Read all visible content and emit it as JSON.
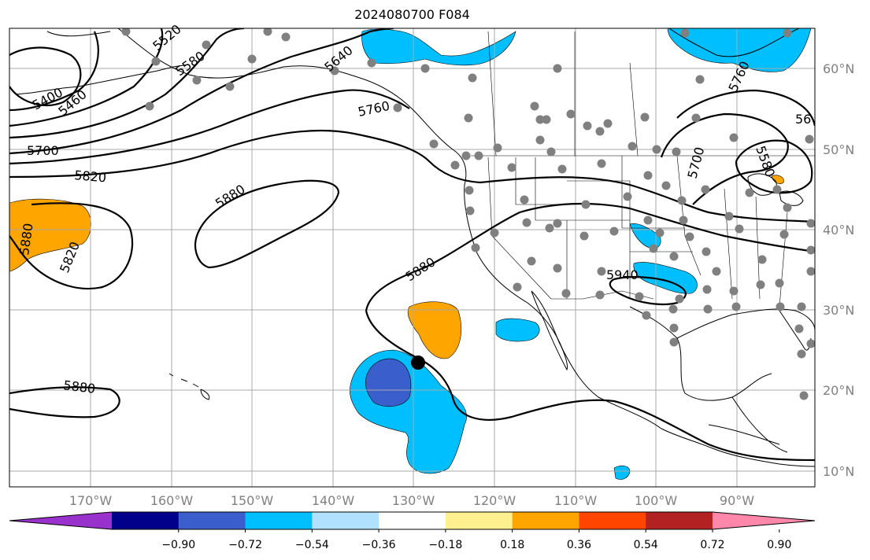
{
  "title": "2024080700 F084",
  "lat_labels": [
    "60°N",
    "50°N",
    "40°N",
    "30°N",
    "20°N",
    "10°N"
  ],
  "lon_labels": [
    "170°W",
    "160°W",
    "150°W",
    "140°W",
    "130°W",
    "120°W",
    "110°W",
    "100°W",
    "90°W"
  ],
  "contour_labels": [
    "5400",
    "5460",
    "5520",
    "5580",
    "5640",
    "5700",
    "5760",
    "5820",
    "5880",
    "5880",
    "5820",
    "5880",
    "5880",
    "5940",
    "5700",
    "5760",
    "5580",
    "56"
  ],
  "colorbar": {
    "ticks": [
      "−0.90",
      "−0.72",
      "−0.54",
      "−0.36",
      "−0.18",
      "0.18",
      "0.36",
      "0.54",
      "0.72",
      "0.90"
    ],
    "colors": [
      "#9932cc",
      "#00008b",
      "#3a5fcd",
      "#00bfff",
      "#b0e2ff",
      "#ffffff",
      "#fff08f",
      "#ffa500",
      "#ff4500",
      "#b22222",
      "#ff88aa"
    ]
  },
  "colors": {
    "orange": "#ffa500",
    "cyan": "#00bfff",
    "blue": "#3a5fcd",
    "grid": "#a9a9a9",
    "station_dots": "#808080"
  }
}
